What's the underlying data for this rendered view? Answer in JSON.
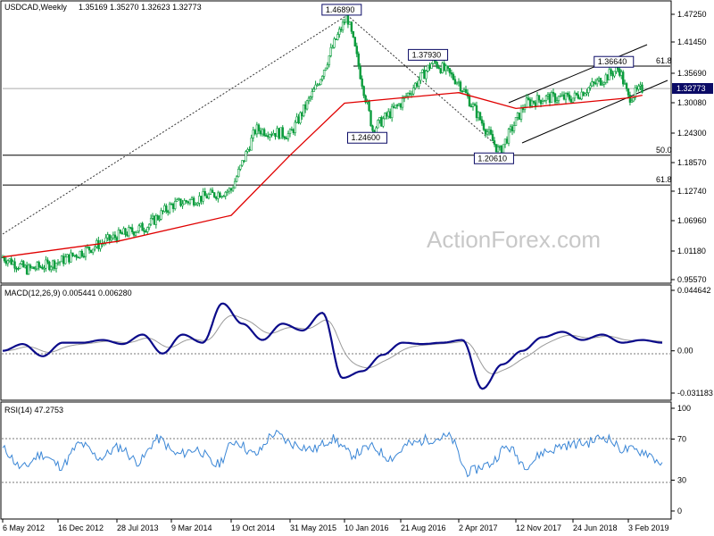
{
  "colors": {
    "background": "#ffffff",
    "candle": "#0a9c3c",
    "ma_line": "#e00000",
    "macd_line": "#0b0b8a",
    "signal_line": "#9a9a9a",
    "rsi_line": "#3a86d6",
    "price_box_bg": "#0b0b66",
    "annotation_border": "#0b0b66"
  },
  "header": {
    "instrument": "USDCAD,Weekly",
    "ohlc": "1.35169 1.35270 1.32623 1.32773"
  },
  "watermark": "ActionForex.com",
  "price_panel": {
    "y_ticks": [
      "1.47250",
      "1.41450",
      "1.35690",
      "1.30080",
      "1.24300",
      "1.18570",
      "1.12740",
      "1.06960",
      "1.01180",
      "0.95570"
    ],
    "current_price": "1.32773",
    "annotations": [
      "1.46890",
      "1.37930",
      "1.36640",
      "1.24600",
      "1.20610"
    ],
    "fib_labels": [
      "61.8",
      "50.0",
      "61.8"
    ]
  },
  "macd_panel": {
    "label": "MACD(12,26,9) 0.005441 0.006280",
    "y_ticks": [
      "0.044642",
      "0.00",
      "-0.031183"
    ]
  },
  "rsi_panel": {
    "label": "RSI(14) 47.2753",
    "y_ticks": [
      "100",
      "70",
      "30",
      "0"
    ]
  },
  "x_axis": {
    "labels": [
      "6 May 2012",
      "16 Dec 2012",
      "28 Jul 2013",
      "9 Mar 2014",
      "19 Oct 2014",
      "31 May 2015",
      "10 Jan 2016",
      "21 Aug 2016",
      "2 Apr 2017",
      "12 Nov 2017",
      "24 Jun 2018",
      "3 Feb 2019"
    ]
  },
  "chart_data": [
    {
      "type": "candlestick",
      "title": "USDCAD,Weekly",
      "xlabel": "",
      "ylabel": "",
      "ylim": [
        0.9557,
        1.4725
      ],
      "x": [
        "2012-05-06",
        "2012-12-16",
        "2013-07-28",
        "2014-03-09",
        "2014-10-19",
        "2015-05-31",
        "2016-01-10",
        "2016-08-21",
        "2017-04-02",
        "2017-11-12",
        "2018-06-24",
        "2019-02-03"
      ],
      "price_keypoints": [
        {
          "x": "2012-05-06",
          "y": 1.0
        },
        {
          "x": "2012-08-15",
          "y": 0.975
        },
        {
          "x": "2012-12-16",
          "y": 0.99
        },
        {
          "x": "2013-07-28",
          "y": 1.04
        },
        {
          "x": "2013-12-01",
          "y": 1.06
        },
        {
          "x": "2014-03-09",
          "y": 1.1
        },
        {
          "x": "2014-10-19",
          "y": 1.13
        },
        {
          "x": "2015-01-20",
          "y": 1.25
        },
        {
          "x": "2015-05-31",
          "y": 1.24
        },
        {
          "x": "2015-09-15",
          "y": 1.33
        },
        {
          "x": "2016-01-20",
          "y": 1.4689
        },
        {
          "x": "2016-05-01",
          "y": 1.25
        },
        {
          "x": "2016-08-21",
          "y": 1.3
        },
        {
          "x": "2016-12-25",
          "y": 1.3793
        },
        {
          "x": "2017-04-02",
          "y": 1.34
        },
        {
          "x": "2017-09-08",
          "y": 1.2061
        },
        {
          "x": "2017-12-20",
          "y": 1.3
        },
        {
          "x": "2018-03-10",
          "y": 1.31
        },
        {
          "x": "2018-06-24",
          "y": 1.31
        },
        {
          "x": "2018-12-28",
          "y": 1.3664
        },
        {
          "x": "2019-02-03",
          "y": 1.31
        },
        {
          "x": "2019-04-01",
          "y": 1.32773
        }
      ],
      "moving_average_keypoints": [
        {
          "x": "2012-05-06",
          "y": 1.0
        },
        {
          "x": "2013-07-28",
          "y": 1.03
        },
        {
          "x": "2014-10-19",
          "y": 1.08
        },
        {
          "x": "2015-05-31",
          "y": 1.2
        },
        {
          "x": "2016-01-10",
          "y": 1.3
        },
        {
          "x": "2016-08-21",
          "y": 1.31
        },
        {
          "x": "2017-04-02",
          "y": 1.32
        },
        {
          "x": "2017-11-12",
          "y": 1.29
        },
        {
          "x": "2018-06-24",
          "y": 1.3
        },
        {
          "x": "2019-02-03",
          "y": 1.31
        },
        {
          "x": "2019-04-01",
          "y": 1.315
        }
      ],
      "horizontal_levels": [
        {
          "label": "61.8",
          "y": 1.37
        },
        {
          "label": "50.0",
          "y": 1.2
        },
        {
          "label": "61.8",
          "y": 1.14
        }
      ],
      "annotated_points": [
        {
          "label": "1.46890",
          "x": "2016-01-20",
          "y": 1.4689
        },
        {
          "label": "1.37930",
          "x": "2016-12-25",
          "y": 1.3793
        },
        {
          "label": "1.36640",
          "x": "2018-12-28",
          "y": 1.3664
        },
        {
          "label": "1.24600",
          "x": "2016-05-01",
          "y": 1.246
        },
        {
          "label": "1.20610",
          "x": "2017-09-08",
          "y": 1.2061
        }
      ]
    },
    {
      "type": "line",
      "title": "MACD(12,26,9) 0.005441 0.006280",
      "ylim": [
        -0.031183,
        0.044642
      ],
      "macd_keypoints": [
        0.0,
        0.005,
        -0.004,
        0.006,
        0.006,
        0.008,
        0.005,
        0.012,
        -0.002,
        0.012,
        0.006,
        0.035,
        0.02,
        0.008,
        0.02,
        0.015,
        0.028,
        -0.02,
        -0.015,
        -0.003,
        0.006,
        0.005,
        0.006,
        0.008,
        -0.028,
        -0.01,
        0.0,
        0.01,
        0.014,
        0.008,
        0.012,
        0.006,
        0.008,
        0.006
      ]
    },
    {
      "type": "line",
      "title": "RSI(14) 47.2753",
      "ylim": [
        0,
        100
      ],
      "rsi_keypoints": [
        60,
        42,
        55,
        44,
        65,
        52,
        62,
        48,
        70,
        55,
        60,
        45,
        68,
        55,
        75,
        65,
        60,
        70,
        55,
        62,
        52,
        65,
        70,
        72,
        38,
        45,
        62,
        45,
        58,
        64,
        66,
        72,
        60,
        58,
        47.2753
      ]
    }
  ]
}
